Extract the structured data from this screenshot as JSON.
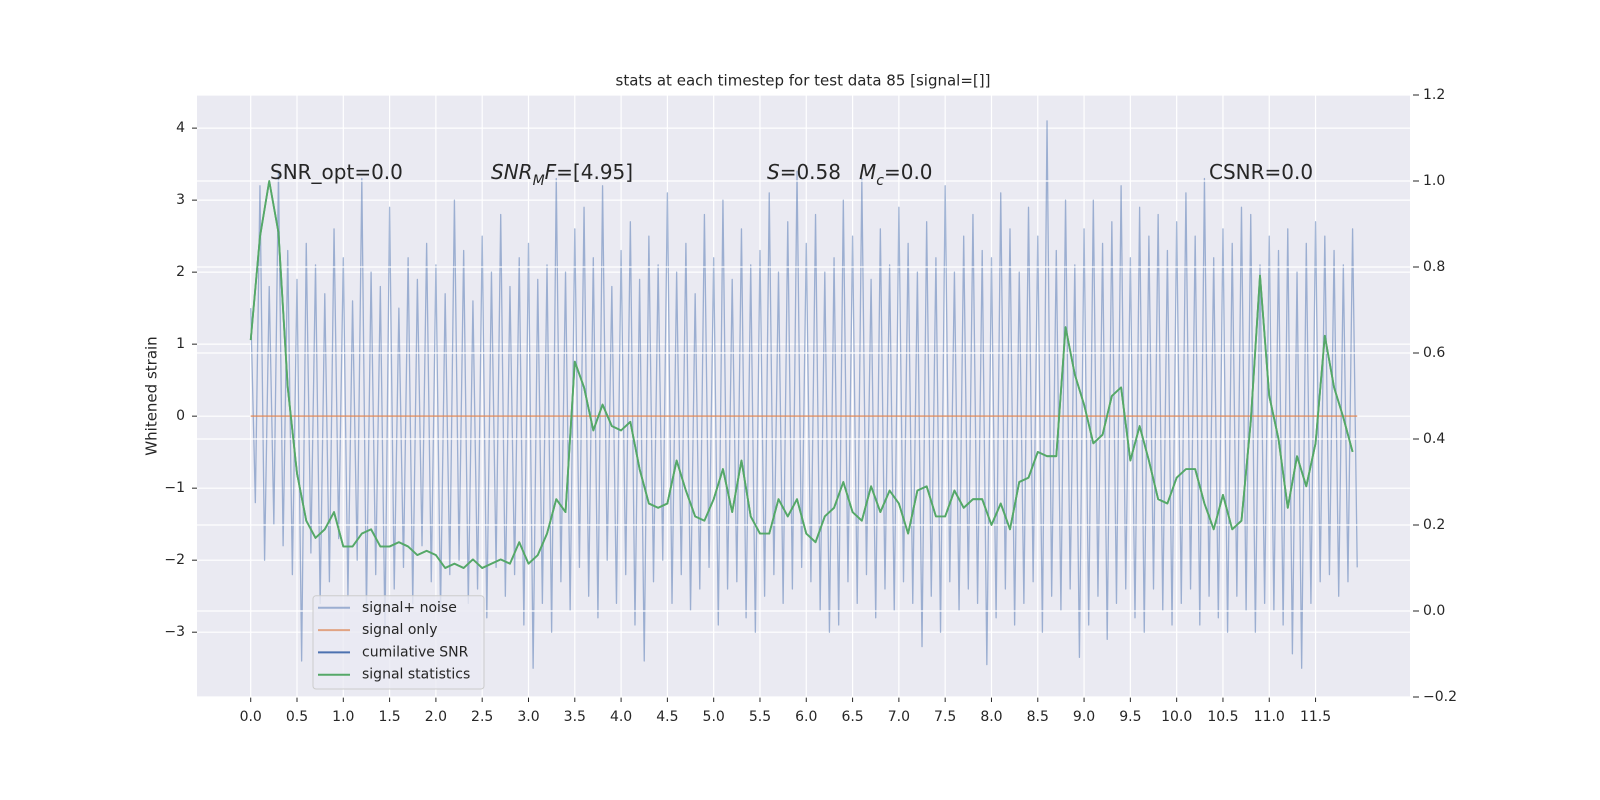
{
  "chart_data": {
    "type": "line",
    "title": "stats at each timestep for test data 85 [signal=[]]",
    "ylabel": "Whitened strain",
    "xlim": [
      -0.58,
      12.52
    ],
    "ylim": [
      -3.9,
      4.46
    ],
    "y2lim": [
      -0.2,
      1.2
    ],
    "xticks": [
      {
        "value": 0,
        "label": "0.0"
      },
      0.5,
      {
        "value": 1,
        "label": "1.0"
      },
      1.5,
      {
        "value": 2,
        "label": "2.0"
      },
      2.5,
      {
        "value": 3,
        "label": "3.0"
      },
      3.5,
      {
        "value": 4,
        "label": "4.0"
      },
      4.5,
      {
        "value": 5,
        "label": "5.0"
      },
      5.5,
      {
        "value": 6,
        "label": "6.0"
      },
      6.5,
      {
        "value": 7,
        "label": "7.0"
      },
      7.5,
      {
        "value": 8,
        "label": "8.0"
      },
      8.5,
      {
        "value": 9,
        "label": "9.0"
      },
      9.5,
      {
        "value": 10,
        "label": "10.0"
      },
      10.5,
      {
        "value": 11,
        "label": "11.0"
      },
      11.5
    ],
    "yticks": [
      {
        "value": -3,
        "label": "−3"
      },
      {
        "value": -2,
        "label": "−2"
      },
      {
        "value": -1,
        "label": "−1"
      },
      0,
      1,
      2,
      3,
      4
    ],
    "y2ticks": [
      {
        "value": -0.2,
        "label": "−0.2"
      },
      {
        "value": 0,
        "label": "0.0"
      },
      0.2,
      0.4,
      0.6,
      0.8,
      {
        "value": 1,
        "label": "1.0"
      },
      1.2
    ],
    "grid": true,
    "legend": "lower left",
    "annotations": [
      [
        {
          "text": "SNR_opt=0.0"
        }
      ],
      [
        {
          "text": "SNR",
          "italic": true
        },
        {
          "text": "M",
          "italic": true,
          "sub": true
        },
        {
          "text": "F",
          "italic": true
        },
        {
          "text": "=[4.95]"
        }
      ],
      [
        {
          "text": "S",
          "italic": true
        },
        {
          "text": "=0.58"
        }
      ],
      [
        {
          "text": "M",
          "italic": true
        },
        {
          "text": "c",
          "italic": true,
          "sub": true
        },
        {
          "text": "=0.0"
        }
      ],
      [
        {
          "text": "CSNR=0.0"
        }
      ]
    ],
    "series": [
      {
        "name": "signal+ noise",
        "color": "#4c72b0",
        "alpha": 0.5,
        "x": [
          0,
          0.05,
          0.1,
          0.15,
          0.2,
          0.25,
          0.3,
          0.35,
          0.4,
          0.45,
          0.5,
          0.55,
          0.6,
          0.65,
          0.7,
          0.75,
          0.8,
          0.85,
          0.9,
          0.95,
          1,
          1.05,
          1.1,
          1.15,
          1.2,
          1.25,
          1.3,
          1.35,
          1.4,
          1.45,
          1.5,
          1.55,
          1.6,
          1.65,
          1.7,
          1.75,
          1.8,
          1.85,
          1.9,
          1.95,
          2,
          2.05,
          2.1,
          2.15,
          2.2,
          2.25,
          2.3,
          2.35,
          2.4,
          2.45,
          2.5,
          2.55,
          2.6,
          2.65,
          2.7,
          2.75,
          2.8,
          2.85,
          2.9,
          2.95,
          3,
          3.05,
          3.1,
          3.15,
          3.2,
          3.25,
          3.3,
          3.35,
          3.4,
          3.45,
          3.5,
          3.55,
          3.6,
          3.65,
          3.7,
          3.75,
          3.8,
          3.85,
          3.9,
          3.95,
          4,
          4.05,
          4.1,
          4.15,
          4.2,
          4.25,
          4.3,
          4.35,
          4.4,
          4.45,
          4.5,
          4.55,
          4.6,
          4.65,
          4.7,
          4.75,
          4.8,
          4.85,
          4.9,
          4.95,
          5,
          5.05,
          5.1,
          5.15,
          5.2,
          5.25,
          5.3,
          5.35,
          5.4,
          5.45,
          5.5,
          5.55,
          5.6,
          5.65,
          5.7,
          5.75,
          5.8,
          5.85,
          5.9,
          5.95,
          6,
          6.05,
          6.1,
          6.15,
          6.2,
          6.25,
          6.3,
          6.35,
          6.4,
          6.45,
          6.5,
          6.55,
          6.6,
          6.65,
          6.7,
          6.75,
          6.8,
          6.85,
          6.9,
          6.95,
          7,
          7.05,
          7.1,
          7.15,
          7.2,
          7.25,
          7.3,
          7.35,
          7.4,
          7.45,
          7.5,
          7.55,
          7.6,
          7.65,
          7.7,
          7.75,
          7.8,
          7.85,
          7.9,
          7.95,
          8,
          8.05,
          8.1,
          8.15,
          8.2,
          8.25,
          8.3,
          8.35,
          8.4,
          8.45,
          8.5,
          8.55,
          8.6,
          8.65,
          8.7,
          8.75,
          8.8,
          8.85,
          8.9,
          8.95,
          9,
          9.05,
          9.1,
          9.15,
          9.2,
          9.25,
          9.3,
          9.35,
          9.4,
          9.45,
          9.5,
          9.55,
          9.6,
          9.65,
          9.7,
          9.75,
          9.8,
          9.85,
          9.9,
          9.95,
          10,
          10.05,
          10.1,
          10.15,
          10.2,
          10.25,
          10.3,
          10.35,
          10.4,
          10.45,
          10.5,
          10.55,
          10.6,
          10.65,
          10.7,
          10.75,
          10.8,
          10.85,
          10.9,
          10.95,
          11,
          11.05,
          11.1,
          11.15,
          11.2,
          11.25,
          11.3,
          11.35,
          11.4,
          11.45,
          11.5,
          11.55,
          11.6,
          11.65,
          11.7,
          11.75,
          11.8,
          11.85,
          11.9,
          11.95
        ],
        "values": [
          1.5,
          -1.2,
          3.2,
          -2.0,
          1.8,
          -1.5,
          3.4,
          -1.8,
          2.3,
          -2.2,
          1.9,
          -3.4,
          2.4,
          -1.9,
          2.1,
          -2.6,
          1.7,
          -2.3,
          2.6,
          -1.7,
          2.2,
          -2.5,
          1.6,
          -2.0,
          3.3,
          -2.7,
          2.0,
          -2.2,
          1.8,
          -3.0,
          2.9,
          -2.4,
          1.5,
          -2.1,
          2.2,
          -2.6,
          1.9,
          -1.8,
          2.4,
          -2.3,
          2.1,
          -2.7,
          1.7,
          -2.2,
          3.0,
          -2.0,
          2.3,
          -2.6,
          1.6,
          -2.4,
          2.5,
          -2.8,
          2.0,
          -2.1,
          2.8,
          -2.5,
          1.8,
          -2.2,
          2.2,
          -2.9,
          2.4,
          -3.5,
          1.9,
          -2.6,
          2.1,
          -3.0,
          3.3,
          -2.3,
          2.0,
          -2.7,
          2.6,
          -2.1,
          2.9,
          -2.5,
          2.2,
          -2.8,
          3.2,
          -2.0,
          1.8,
          -2.6,
          2.3,
          -2.2,
          2.7,
          -2.9,
          1.9,
          -3.4,
          2.5,
          -2.3,
          2.1,
          -2.0,
          3.1,
          -2.6,
          2.0,
          -2.2,
          2.4,
          -2.7,
          1.7,
          -2.4,
          2.8,
          -2.1,
          2.2,
          -2.9,
          3.0,
          -2.4,
          1.9,
          -2.3,
          2.6,
          -2.8,
          2.1,
          -3.0,
          2.3,
          -2.5,
          3.1,
          -2.2,
          2.0,
          -2.6,
          2.7,
          -2.4,
          3.4,
          -2.1,
          2.4,
          -2.3,
          2.8,
          -2.7,
          2.0,
          -3.0,
          2.2,
          -2.9,
          3.0,
          -2.3,
          2.5,
          -2.6,
          3.3,
          -2.2,
          1.9,
          -2.8,
          2.6,
          -2.4,
          2.1,
          -2.7,
          2.9,
          -2.3,
          2.4,
          -2.6,
          2.0,
          -3.2,
          2.7,
          -2.5,
          2.2,
          -3.0,
          3.2,
          -2.3,
          2.0,
          -2.7,
          2.5,
          -2.4,
          2.8,
          -2.6,
          2.3,
          -3.45,
          2.2,
          -2.8,
          3.1,
          -2.4,
          2.6,
          -2.9,
          2.0,
          -2.6,
          2.9,
          -2.3,
          2.5,
          -3.0,
          4.1,
          -2.5,
          2.3,
          -2.7,
          3.0,
          -2.4,
          2.1,
          -3.35,
          2.6,
          -2.9,
          3.0,
          -2.5,
          2.4,
          -3.1,
          2.7,
          -2.6,
          3.2,
          -2.4,
          2.2,
          -2.8,
          2.9,
          -3.0,
          2.5,
          -2.4,
          2.8,
          -2.7,
          2.3,
          -2.9,
          2.7,
          -2.6,
          3.1,
          -2.4,
          2.5,
          -2.9,
          3.3,
          -2.5,
          2.2,
          -2.8,
          2.6,
          -3.0,
          2.4,
          -2.5,
          2.9,
          -2.7,
          2.8,
          -3.0,
          2.1,
          -2.6,
          2.5,
          -2.7,
          2.3,
          -2.9,
          2.6,
          -3.3,
          2.0,
          -3.5,
          2.4,
          -2.6,
          2.7,
          -2.3,
          2.5,
          -2.2,
          2.3,
          -2.5,
          2.1,
          -2.3,
          2.6,
          -2.1
        ]
      },
      {
        "name": "signal only",
        "color": "#dd8452",
        "alpha": 0.7,
        "x": [
          0,
          11.95
        ],
        "values": [
          0,
          0
        ]
      },
      {
        "name": "cumilative SNR",
        "color": "#4c72b0",
        "alpha": 1,
        "x": [
          0,
          11.95
        ],
        "values": [
          null,
          null
        ]
      },
      {
        "name": "signal statistics",
        "color": "#55a868",
        "alpha": 1,
        "axis": "y2",
        "x": [
          0,
          0.1,
          0.2,
          0.3,
          0.4,
          0.5,
          0.6,
          0.7,
          0.8,
          0.9,
          1,
          1.1,
          1.2,
          1.3,
          1.4,
          1.5,
          1.6,
          1.7,
          1.8,
          1.9,
          2,
          2.1,
          2.2,
          2.3,
          2.4,
          2.5,
          2.6,
          2.7,
          2.8,
          2.9,
          3,
          3.1,
          3.2,
          3.3,
          3.4,
          3.5,
          3.6,
          3.7,
          3.8,
          3.9,
          4,
          4.1,
          4.2,
          4.3,
          4.4,
          4.5,
          4.6,
          4.7,
          4.8,
          4.9,
          5,
          5.1,
          5.2,
          5.3,
          5.4,
          5.5,
          5.6,
          5.7,
          5.8,
          5.9,
          6,
          6.1,
          6.2,
          6.3,
          6.4,
          6.5,
          6.6,
          6.7,
          6.8,
          6.9,
          7,
          7.1,
          7.2,
          7.3,
          7.4,
          7.5,
          7.6,
          7.7,
          7.8,
          7.9,
          8,
          8.1,
          8.2,
          8.3,
          8.4,
          8.5,
          8.6,
          8.7,
          8.8,
          8.9,
          9,
          9.1,
          9.2,
          9.3,
          9.4,
          9.5,
          9.6,
          9.7,
          9.8,
          9.9,
          10,
          10.1,
          10.2,
          10.3,
          10.4,
          10.5,
          10.6,
          10.7,
          10.8,
          10.9,
          11,
          11.1,
          11.2,
          11.3,
          11.4,
          11.5,
          11.6,
          11.7,
          11.8,
          11.9
        ],
        "values": [
          0.63,
          0.87,
          1.0,
          0.88,
          0.52,
          0.32,
          0.21,
          0.17,
          0.19,
          0.23,
          0.15,
          0.15,
          0.18,
          0.19,
          0.15,
          0.15,
          0.16,
          0.15,
          0.13,
          0.14,
          0.13,
          0.1,
          0.11,
          0.1,
          0.12,
          0.1,
          0.11,
          0.12,
          0.11,
          0.16,
          0.11,
          0.13,
          0.18,
          0.26,
          0.23,
          0.58,
          0.52,
          0.42,
          0.48,
          0.43,
          0.42,
          0.44,
          0.33,
          0.25,
          0.24,
          0.25,
          0.35,
          0.28,
          0.22,
          0.21,
          0.26,
          0.33,
          0.23,
          0.35,
          0.22,
          0.18,
          0.18,
          0.26,
          0.22,
          0.26,
          0.18,
          0.16,
          0.22,
          0.24,
          0.3,
          0.23,
          0.21,
          0.29,
          0.23,
          0.28,
          0.25,
          0.18,
          0.28,
          0.29,
          0.22,
          0.22,
          0.28,
          0.24,
          0.26,
          0.26,
          0.2,
          0.25,
          0.19,
          0.3,
          0.31,
          0.37,
          0.36,
          0.36,
          0.66,
          0.55,
          0.48,
          0.39,
          0.41,
          0.5,
          0.52,
          0.35,
          0.43,
          0.35,
          0.26,
          0.25,
          0.31,
          0.33,
          0.33,
          0.25,
          0.19,
          0.27,
          0.19,
          0.21,
          0.44,
          0.78,
          0.5,
          0.4,
          0.24,
          0.36,
          0.29,
          0.39,
          0.64,
          0.52,
          0.45,
          0.37
        ]
      }
    ]
  }
}
